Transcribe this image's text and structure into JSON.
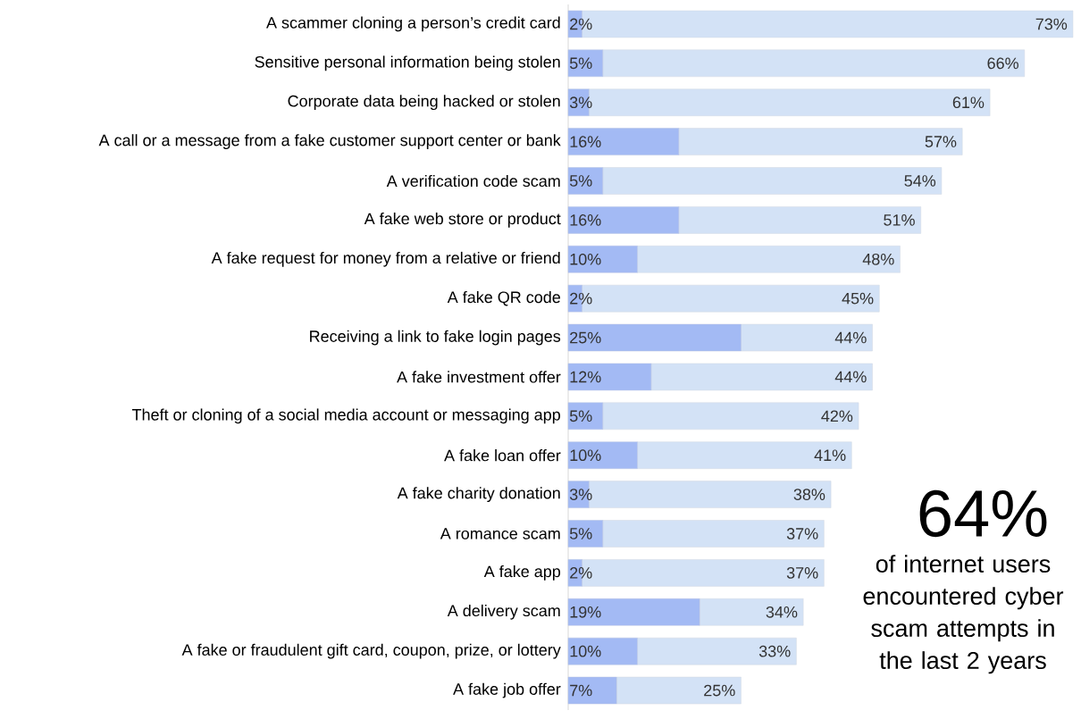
{
  "chart_data": {
    "type": "bar",
    "orientation": "horizontal",
    "stacked": true,
    "tick_labels": "y",
    "categories": [
      "A scammer cloning a person’s credit card",
      "Sensitive personal information being stolen",
      "Corporate data being hacked or stolen",
      "A call or a message from a fake customer support center or bank",
      "A verification code scam",
      "A fake web store or product",
      "A fake request for money from a relative or friend",
      "A fake QR code",
      "Receiving a link to fake login pages",
      "A fake investment offer",
      "Theft or cloning of a social media account or messaging app",
      "A fake loan offer",
      "A fake charity donation",
      "A romance scam",
      "A fake app",
      "A delivery scam",
      "A fake or fraudulent gift card, coupon, prize, or lottery",
      "A fake job offer"
    ],
    "series": [
      {
        "color": "#a3baf4",
        "values": [
          2,
          5,
          3,
          16,
          5,
          16,
          10,
          2,
          25,
          12,
          5,
          10,
          3,
          5,
          2,
          19,
          10,
          7
        ],
        "value_labels": [
          "2%",
          "5%",
          "3%",
          "16%",
          "5%",
          "16%",
          "10%",
          "2%",
          "25%",
          "12%",
          "5%",
          "10%",
          "3%",
          "5%",
          "2%",
          "19%",
          "10%",
          "7%"
        ]
      },
      {
        "color": "#d3e2f6",
        "values": [
          71,
          61,
          58,
          41,
          49,
          35,
          38,
          43,
          19,
          32,
          37,
          31,
          35,
          32,
          35,
          15,
          23,
          18
        ]
      }
    ],
    "totals": [
      "73%",
      "66%",
      "61%",
      "57%",
      "54%",
      "51%",
      "48%",
      "45%",
      "44%",
      "44%",
      "42%",
      "41%",
      "38%",
      "37%",
      "37%",
      "34%",
      "33%",
      "25%"
    ],
    "annotations": [
      "64%",
      "of internet users encountered cyber scam attempts in the last 2 years"
    ]
  }
}
